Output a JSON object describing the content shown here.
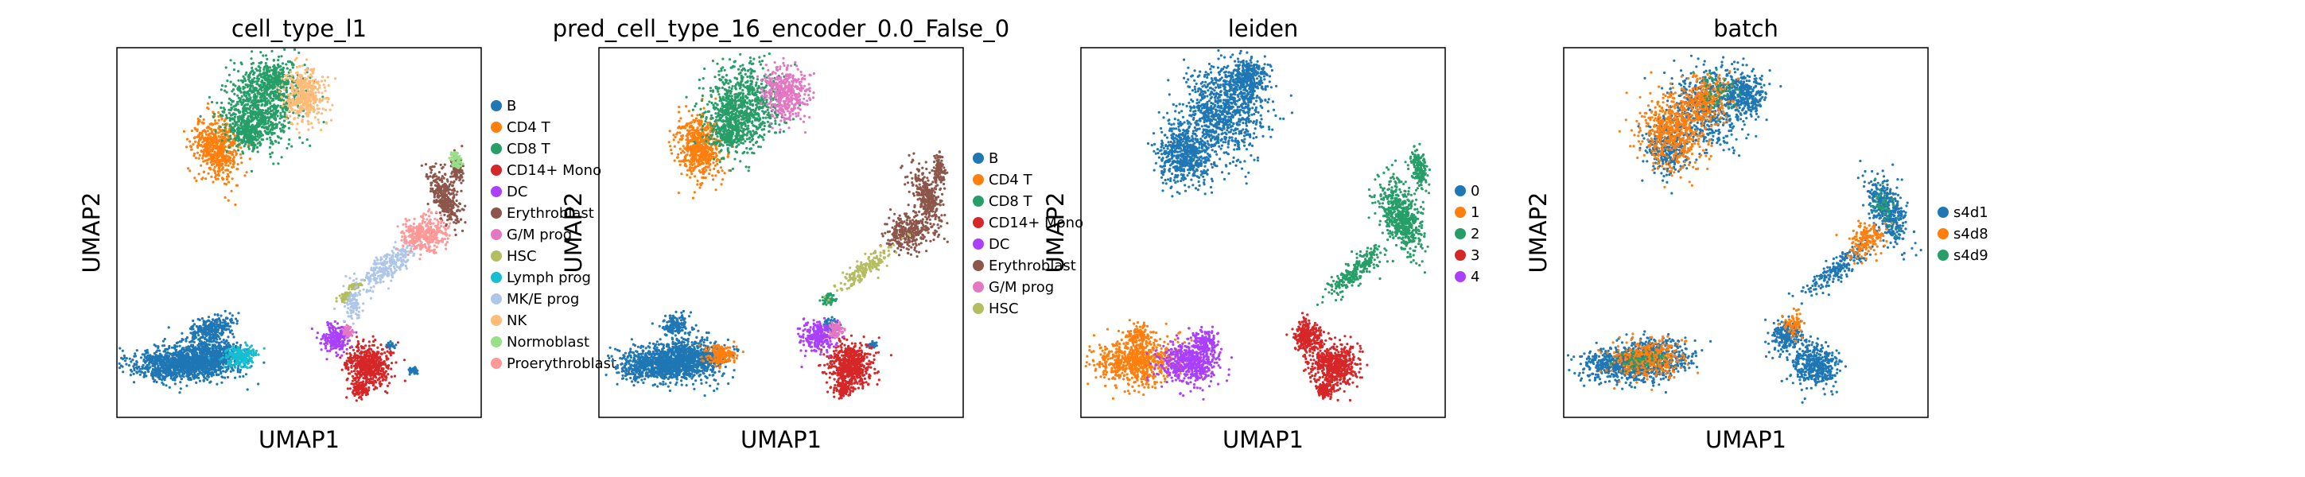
{
  "colors": {
    "palette": [
      "#1f77b4",
      "#ff7f0e",
      "#279e68",
      "#d62728",
      "#aa40fc",
      "#8c564b",
      "#e377c2",
      "#b5bd61",
      "#17becf",
      "#aec7e8",
      "#ffbb78",
      "#98df8a",
      "#ff9896"
    ],
    "axes_frame": "#000000",
    "background": "#ffffff"
  },
  "chart_data": [
    {
      "type": "scatter",
      "title": "cell_type_l1",
      "xlabel": "UMAP1",
      "ylabel": "UMAP2",
      "xlim": [
        0,
        10
      ],
      "ylim": [
        0,
        10
      ],
      "grid": false,
      "legend_position": "right",
      "legend": [
        "B",
        "CD4 T",
        "CD8 T",
        "CD14+ Mono",
        "DC",
        "Erythroblast",
        "G/M prog",
        "HSC",
        "Lymph prog",
        "MK/E prog",
        "NK",
        "Normoblast",
        "Proerythroblast"
      ],
      "clusters": [
        {
          "category": "B",
          "points": [
            [
              1.5,
              1.4
            ],
            [
              2.5,
              1.6
            ],
            [
              3.3,
              1.3
            ],
            [
              2.0,
              2.0
            ],
            [
              8.2,
              1.2
            ],
            [
              7.5,
              2.0
            ]
          ]
        },
        {
          "category": "CD4 T",
          "points": [
            [
              2.8,
              7.2
            ],
            [
              3.0,
              7.8
            ],
            [
              2.6,
              7.5
            ]
          ]
        },
        {
          "category": "CD8 T",
          "points": [
            [
              3.9,
              8.5
            ],
            [
              4.3,
              9.0
            ],
            [
              3.6,
              8.0
            ],
            [
              3.5,
              7.5
            ]
          ]
        },
        {
          "category": "CD14+ Mono",
          "points": [
            [
              7.1,
              1.2
            ],
            [
              6.8,
              1.5
            ]
          ]
        },
        {
          "category": "DC",
          "points": [
            [
              6.0,
              2.3
            ],
            [
              6.1,
              2.0
            ]
          ]
        },
        {
          "category": "Erythroblast",
          "points": [
            [
              9.0,
              6.0
            ],
            [
              9.2,
              6.5
            ]
          ]
        },
        {
          "category": "G/M prog",
          "points": [
            [
              6.4,
              2.4
            ]
          ]
        },
        {
          "category": "HSC",
          "points": [
            [
              6.3,
              3.3
            ]
          ]
        },
        {
          "category": "Lymph prog",
          "points": [
            [
              3.4,
              1.6
            ]
          ]
        },
        {
          "category": "MK/E prog",
          "points": [
            [
              7.4,
              4.1
            ]
          ]
        },
        {
          "category": "NK",
          "points": [
            [
              5.1,
              8.6
            ]
          ]
        },
        {
          "category": "Normoblast",
          "points": [
            [
              9.3,
              7.0
            ]
          ]
        },
        {
          "category": "Proerythroblast",
          "points": [
            [
              8.7,
              5.0
            ]
          ]
        }
      ]
    },
    {
      "type": "scatter",
      "title": "pred_cell_type_16_encoder_0.0_False_0",
      "xlabel": "UMAP1",
      "ylabel": "UMAP2",
      "xlim": [
        0,
        10
      ],
      "ylim": [
        0,
        10
      ],
      "grid": false,
      "legend_position": "right",
      "legend": [
        "B",
        "CD4 T",
        "CD8 T",
        "CD14+ Mono",
        "DC",
        "Erythroblast",
        "G/M prog",
        "HSC"
      ],
      "clusters": [
        {
          "category": "B",
          "points": [
            [
              1.5,
              1.4
            ],
            [
              2.5,
              1.6
            ],
            [
              2.0,
              2.0
            ]
          ]
        },
        {
          "category": "CD4 T",
          "points": [
            [
              2.8,
              7.2
            ],
            [
              3.3,
              1.6
            ]
          ]
        },
        {
          "category": "CD8 T",
          "points": [
            [
              3.9,
              8.5
            ],
            [
              3.5,
              7.5
            ]
          ]
        },
        {
          "category": "CD14+ Mono",
          "points": [
            [
              7.1,
              1.2
            ],
            [
              6.8,
              1.5
            ]
          ]
        },
        {
          "category": "DC",
          "points": [
            [
              6.0,
              2.3
            ]
          ]
        },
        {
          "category": "Erythroblast",
          "points": [
            [
              9.0,
              6.0
            ],
            [
              8.5,
              5.0
            ]
          ]
        },
        {
          "category": "G/M prog",
          "points": [
            [
              5.1,
              8.6
            ]
          ]
        },
        {
          "category": "HSC",
          "points": [
            [
              7.0,
              3.8
            ]
          ]
        }
      ]
    },
    {
      "type": "scatter",
      "title": "leiden",
      "xlabel": "UMAP1",
      "ylabel": "UMAP2",
      "xlim": [
        0,
        10
      ],
      "ylim": [
        0,
        10
      ],
      "grid": false,
      "legend_position": "right",
      "legend": [
        "0",
        "1",
        "2",
        "3",
        "4"
      ],
      "clusters": [
        {
          "category": "0",
          "points": [
            [
              3.9,
              8.5
            ],
            [
              2.8,
              7.2
            ],
            [
              3.5,
              7.5
            ]
          ]
        },
        {
          "category": "1",
          "points": [
            [
              1.5,
              1.4
            ],
            [
              1.8,
              1.9
            ]
          ]
        },
        {
          "category": "2",
          "points": [
            [
              9.0,
              6.0
            ],
            [
              8.0,
              4.5
            ],
            [
              7.0,
              3.6
            ]
          ]
        },
        {
          "category": "3",
          "points": [
            [
              7.0,
              1.5
            ],
            [
              6.2,
              2.1
            ]
          ]
        },
        {
          "category": "4",
          "points": [
            [
              3.0,
              1.4
            ],
            [
              3.4,
              1.9
            ]
          ]
        }
      ]
    },
    {
      "type": "scatter",
      "title": "batch",
      "xlabel": "UMAP1",
      "ylabel": "UMAP2",
      "xlim": [
        0,
        10
      ],
      "ylim": [
        0,
        10
      ],
      "grid": false,
      "legend_position": "right",
      "legend": [
        "s4d1",
        "s4d8",
        "s4d9"
      ],
      "clusters": [
        {
          "category": "s4d1",
          "points": [
            [
              3.9,
              8.5
            ],
            [
              1.5,
              1.4
            ],
            [
              9.0,
              6.0
            ],
            [
              7.0,
              1.5
            ]
          ]
        },
        {
          "category": "s4d8",
          "points": [
            [
              3.0,
              7.8
            ],
            [
              2.5,
              1.6
            ],
            [
              8.0,
              4.5
            ]
          ]
        },
        {
          "category": "s4d9",
          "points": [
            [
              4.2,
              8.8
            ]
          ]
        }
      ]
    }
  ]
}
